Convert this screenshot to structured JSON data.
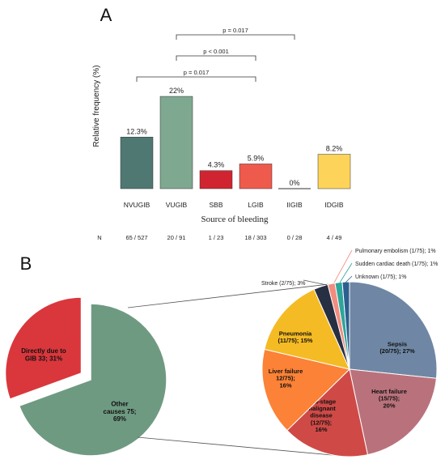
{
  "panels": {
    "a_label": "A",
    "b_label": "B"
  },
  "chart_data": [
    {
      "type": "bar",
      "ylabel": "Relative frequency  (%)",
      "xlabel": "Source of bleeding",
      "categories": [
        "NVUGIB",
        "VUGIB",
        "SBB",
        "LGIB",
        "IIGIB",
        "IDGIB"
      ],
      "values": [
        12.3,
        22,
        4.3,
        5.9,
        0,
        8.2
      ],
      "value_labels": [
        "12.3%",
        "22%",
        "4.3%",
        "5.9%",
        "0%",
        "8.2%"
      ],
      "colors": [
        "#4f7873",
        "#7fa891",
        "#d02530",
        "#ee5b4d",
        "#4a4a4a",
        "#fed35a"
      ],
      "n_label": "N",
      "n_values": [
        "65 / 527",
        "20 / 91",
        "1 / 23",
        "18 / 303",
        "0 / 28",
        "4 / 49"
      ],
      "comparisons": [
        {
          "label": "p = 0.017",
          "from": "VUGIB",
          "to": "IIGIB"
        },
        {
          "label": "p < 0.001",
          "from": "VUGIB",
          "to": "LGIB"
        },
        {
          "label": "p = 0.017",
          "from": "NVUGIB",
          "to": "LGIB"
        }
      ]
    },
    {
      "type": "pie",
      "slices": [
        {
          "label": "Directly due to GIB 33; 31%",
          "lines": [
            "Directly due to",
            "GIB 33; 31%"
          ],
          "value": 33,
          "color": "#d9373c",
          "exploded": true
        },
        {
          "label": "Other causes 75; 69%",
          "lines": [
            "Other",
            "causes 75;",
            "69%"
          ],
          "value": 75,
          "color": "#6f9a82"
        }
      ]
    },
    {
      "type": "pie",
      "title": "",
      "slices": [
        {
          "label": "Sepsis (20/75); 27%",
          "lines": [
            "Sepsis",
            "(20/75); 27%"
          ],
          "value": 20,
          "color": "#6f87a4"
        },
        {
          "label": "Heart failure (15/75); 20%",
          "lines": [
            "Heart failure",
            "(15/75);",
            "20%"
          ],
          "value": 15,
          "color": "#b9727c"
        },
        {
          "label": "End-stage malignant disease (12/75); 16%",
          "lines": [
            "End-stage",
            "malignant",
            "disease",
            "(12/75);",
            "16%"
          ],
          "value": 12,
          "color": "#cf4a47"
        },
        {
          "label": "Liver failure 12/75); 16%",
          "lines": [
            "Liver failure",
            "12/75);",
            "16%"
          ],
          "value": 12,
          "color": "#fb8236"
        },
        {
          "label": "Pneumonia (11/75); 15%",
          "lines": [
            "Pneumonia",
            "(11/75); 15%"
          ],
          "value": 11,
          "color": "#f5bb24"
        },
        {
          "label": "Stroke (2/75); 3%",
          "lines": [
            "Stroke (2/75); 3%"
          ],
          "value": 2,
          "color": "#263042",
          "external": true
        },
        {
          "label": "Pulmonary embolism (1/75); 1%",
          "lines": [
            "Pulmonary embolism (1/75); 1%"
          ],
          "value": 1,
          "color": "#f28c80",
          "external": true
        },
        {
          "label": "Sudden cardiac death (1/75); 1%",
          "lines": [
            "Sudden cardiac death (1/75); 1%"
          ],
          "value": 1,
          "color": "#2ea59a",
          "external": true
        },
        {
          "label": "Unknown (1/75); 1%",
          "lines": [
            "Unknown (1/75); 1%"
          ],
          "value": 1,
          "color": "#2c5f8f",
          "external": true
        }
      ]
    }
  ]
}
